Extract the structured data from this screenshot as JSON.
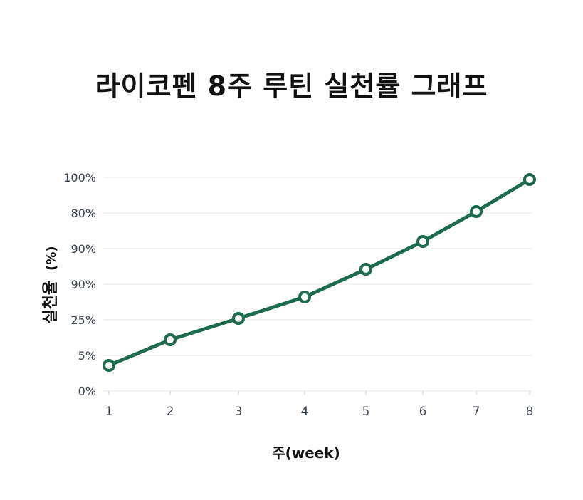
{
  "chart_data": {
    "type": "line",
    "title": "라이코펜 8주 루틴 실천률 그래프",
    "xlabel": "주(week)",
    "ylabel": "실천율",
    "ylabel_unit": "(%)",
    "x": [
      1,
      2,
      3,
      4,
      5,
      6,
      7,
      8
    ],
    "x_tick_labels": [
      "1",
      "2",
      "3",
      "4",
      "5",
      "6",
      "7",
      "8"
    ],
    "y_tick_labels": [
      "0%",
      "5%",
      "25%",
      "90%",
      "90%",
      "80%",
      "100%"
    ],
    "series": [
      {
        "name": "실천율",
        "values": [
          12,
          24,
          34,
          44,
          57,
          70,
          84,
          99
        ],
        "color": "#1b6b4c",
        "marker": "hollow-circle"
      }
    ],
    "ylim": [
      0,
      100
    ],
    "grid": true,
    "legend": null
  },
  "colors": {
    "line": "#1b6b4c",
    "grid": "#e6e6e6",
    "tick_text": "#3a4450",
    "title": "#111111"
  }
}
